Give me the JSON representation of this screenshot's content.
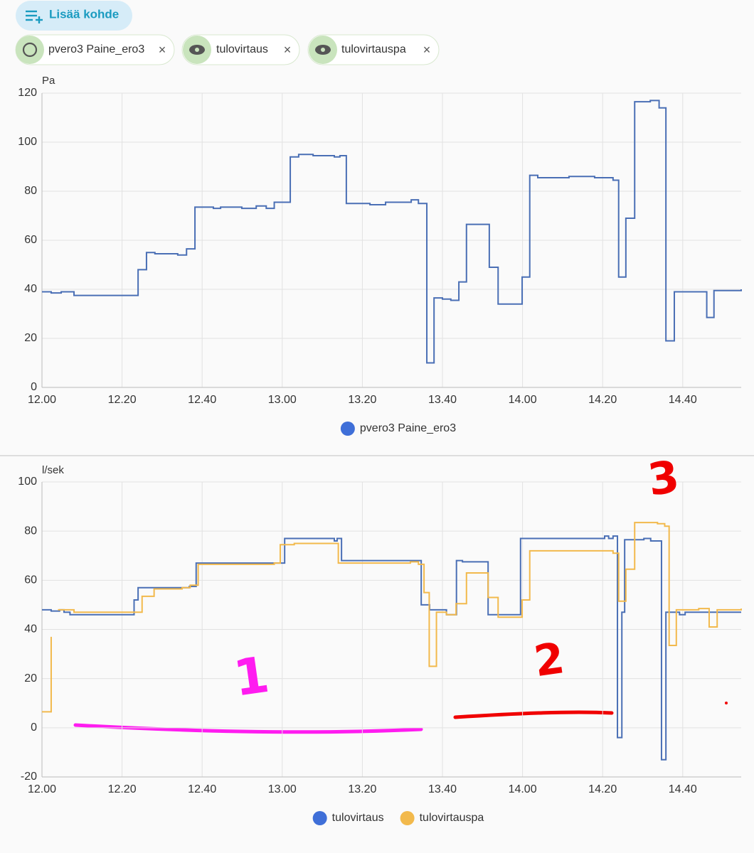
{
  "header": {
    "add_button": "Lisää kohde",
    "chips": [
      "pvero3 Paine_ero3",
      "tulovirtaus",
      "tulovirtauspa"
    ]
  },
  "chart_data": [
    {
      "type": "line",
      "step": true,
      "y_label": "Pa",
      "grid": true,
      "xlim": [
        720,
        894.6
      ],
      "ylim": [
        0,
        120
      ],
      "xticks": [
        {
          "value": 720,
          "label": "12.00"
        },
        {
          "value": 740,
          "label": "12.20"
        },
        {
          "value": 760,
          "label": "12.40"
        },
        {
          "value": 780,
          "label": "13.00"
        },
        {
          "value": 800,
          "label": "13.20"
        },
        {
          "value": 820,
          "label": "13.40"
        },
        {
          "value": 840,
          "label": "14.00"
        },
        {
          "value": 860,
          "label": "14.20"
        },
        {
          "value": 880,
          "label": "14.40"
        }
      ],
      "yticks": [
        0,
        20,
        40,
        60,
        80,
        100,
        120
      ],
      "series": [
        {
          "name": "pvero3 Paine_ero3",
          "color": "#4a6fb5",
          "x": [
            720,
            722.3,
            724.8,
            728,
            744,
            746.1,
            748.2,
            753.9,
            756.1,
            758.2,
            762.8,
            764.6,
            769.9,
            773.5,
            776,
            778,
            782,
            784.1,
            787.7,
            793,
            794.4,
            796,
            801.9,
            805.8,
            810.8,
            812.2,
            814,
            816.1,
            817.9,
            820,
            822.1,
            824.1,
            826,
            831.7,
            833.9,
            839.9,
            841.8,
            843.8,
            851.6,
            858,
            862.6,
            864,
            865.8,
            868,
            871.9,
            874.1,
            875.8,
            877.9,
            885.4,
            886,
            887.8,
            894.6
          ],
          "values": [
            39,
            38.5,
            39,
            37.5,
            48,
            55,
            54.5,
            54,
            56.5,
            73.5,
            73,
            73.5,
            73,
            74,
            73,
            75.5,
            94,
            95,
            94.5,
            94,
            94.5,
            75,
            74.5,
            75.5,
            75.5,
            76.5,
            75,
            10,
            36.5,
            36,
            35.5,
            43,
            66.5,
            49,
            34,
            45,
            86.5,
            85.5,
            86,
            85.5,
            84.5,
            45,
            69,
            116.5,
            117,
            114,
            19,
            39,
            39,
            28.5,
            39.5,
            40
          ]
        }
      ]
    },
    {
      "type": "line",
      "step": true,
      "y_label": "l/sek",
      "grid": true,
      "xlim": [
        720,
        894.6
      ],
      "ylim": [
        -20,
        100
      ],
      "xticks": [
        {
          "value": 720,
          "label": "12.00"
        },
        {
          "value": 740,
          "label": "12.20"
        },
        {
          "value": 760,
          "label": "12.40"
        },
        {
          "value": 780,
          "label": "13.00"
        },
        {
          "value": 800,
          "label": "13.20"
        },
        {
          "value": 820,
          "label": "13.40"
        },
        {
          "value": 840,
          "label": "14.00"
        },
        {
          "value": 860,
          "label": "14.20"
        },
        {
          "value": 880,
          "label": "14.40"
        }
      ],
      "yticks": [
        -20,
        0,
        20,
        40,
        60,
        80,
        100
      ],
      "series": [
        {
          "name": "tulovirtaus",
          "color": "#4a6fb5",
          "x": [
            720,
            722.3,
            724.4,
            725.5,
            727,
            743,
            744,
            748,
            756.8,
            758.5,
            773.5,
            780.6,
            793,
            793.7,
            794.8,
            814.7,
            816.8,
            821,
            823.5,
            825,
            831.4,
            839.5,
            860.5,
            861.5,
            862.6,
            863.7,
            864.8,
            865.5,
            870.3,
            872,
            874.7,
            875.8,
            879.2,
            880.6,
            894.6
          ],
          "values": [
            48,
            47.5,
            48,
            47,
            46,
            52,
            57,
            57,
            57.5,
            67,
            67,
            77,
            76,
            77,
            68,
            50,
            48,
            46,
            68,
            67.5,
            46,
            77,
            78,
            77,
            78,
            -4,
            47,
            76.5,
            77,
            76,
            -13,
            47,
            46,
            47,
            47
          ]
        },
        {
          "name": "tulovirtauspa",
          "color": "#f2b94c",
          "x": [
            720,
            722.3,
            723,
            724,
            728,
            744,
            745,
            748,
            755,
            757,
            759,
            778,
            779.5,
            783,
            794,
            812,
            814,
            815.4,
            816.7,
            818.5,
            821,
            823.4,
            826,
            831.4,
            833.9,
            839.9,
            841.8,
            851,
            862.6,
            864,
            865.8,
            868,
            873.7,
            875.5,
            876.6,
            878.4,
            884,
            886.6,
            888.6,
            894.6
          ],
          "values": [
            6.5,
            37,
            null,
            48,
            47,
            47,
            53.5,
            56.5,
            57,
            58,
            66.5,
            67,
            74.5,
            75,
            67,
            67.5,
            66.5,
            55,
            25,
            47,
            46,
            50.5,
            63,
            53,
            45,
            52,
            72,
            72,
            71,
            51.5,
            64.5,
            83.5,
            83,
            82,
            33.5,
            48,
            48.5,
            41,
            48,
            48.5
          ]
        }
      ],
      "annotations": [
        {
          "text": "1",
          "color": "#ff1cf0"
        },
        {
          "text": "2",
          "color": "#f00000"
        },
        {
          "text": "3",
          "color": "#f00000"
        }
      ]
    }
  ]
}
